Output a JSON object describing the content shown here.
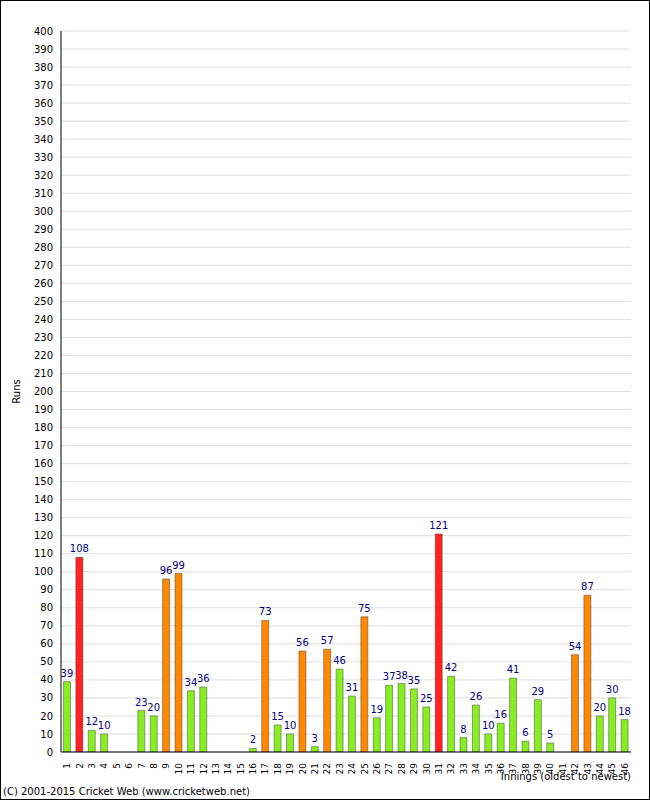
{
  "chart_data": {
    "type": "bar",
    "x_label": "Innings (oldest to newest)",
    "y_label": "Runs",
    "annotations": [
      "(C) 2001-2015 Cricket Web (www.cricketweb.net)"
    ],
    "categories": [
      "1",
      "2",
      "3",
      "4",
      "5",
      "6",
      "7",
      "8",
      "9",
      "10",
      "11",
      "12",
      "13",
      "14",
      "15",
      "16",
      "17",
      "18",
      "19",
      "20",
      "21",
      "22",
      "23",
      "24",
      "25",
      "26",
      "27",
      "28",
      "29",
      "30",
      "31",
      "32",
      "33",
      "34",
      "35",
      "36",
      "37",
      "38",
      "39",
      "40",
      "41",
      "42",
      "43",
      "44",
      "45",
      "46"
    ],
    "values": [
      39,
      108,
      12,
      10,
      0,
      0,
      23,
      20,
      96,
      99,
      34,
      36,
      0,
      0,
      0,
      2,
      73,
      15,
      10,
      56,
      3,
      57,
      46,
      31,
      75,
      19,
      37,
      38,
      35,
      25,
      121,
      42,
      8,
      26,
      10,
      16,
      41,
      6,
      29,
      5,
      0,
      54,
      87,
      20,
      30,
      18
    ],
    "colors": [
      "#88ee22",
      "#ff2222",
      "#88ee22",
      "#88ee22",
      "#88ee22",
      "#88ee22",
      "#88ee22",
      "#88ee22",
      "#ff8800",
      "#ff8800",
      "#88ee22",
      "#88ee22",
      "#88ee22",
      "#88ee22",
      "#88ee22",
      "#88ee22",
      "#ff8800",
      "#88ee22",
      "#88ee22",
      "#ff8800",
      "#88ee22",
      "#ff8800",
      "#88ee22",
      "#88ee22",
      "#ff8800",
      "#88ee22",
      "#88ee22",
      "#88ee22",
      "#88ee22",
      "#88ee22",
      "#ff2222",
      "#88ee22",
      "#88ee22",
      "#88ee22",
      "#88ee22",
      "#88ee22",
      "#88ee22",
      "#88ee22",
      "#88ee22",
      "#88ee22",
      "#88ee22",
      "#ff8800",
      "#ff8800",
      "#88ee22",
      "#88ee22",
      "#88ee22"
    ],
    "ylim": [
      0,
      400
    ],
    "yticks": [
      0,
      10,
      20,
      30,
      40,
      50,
      60,
      70,
      80,
      90,
      100,
      110,
      120,
      130,
      140,
      150,
      160,
      170,
      180,
      190,
      200,
      210,
      220,
      230,
      240,
      250,
      260,
      270,
      280,
      290,
      300,
      310,
      320,
      330,
      340,
      350,
      360,
      370,
      380,
      390,
      400
    ],
    "grid": true,
    "data_labels": true
  }
}
